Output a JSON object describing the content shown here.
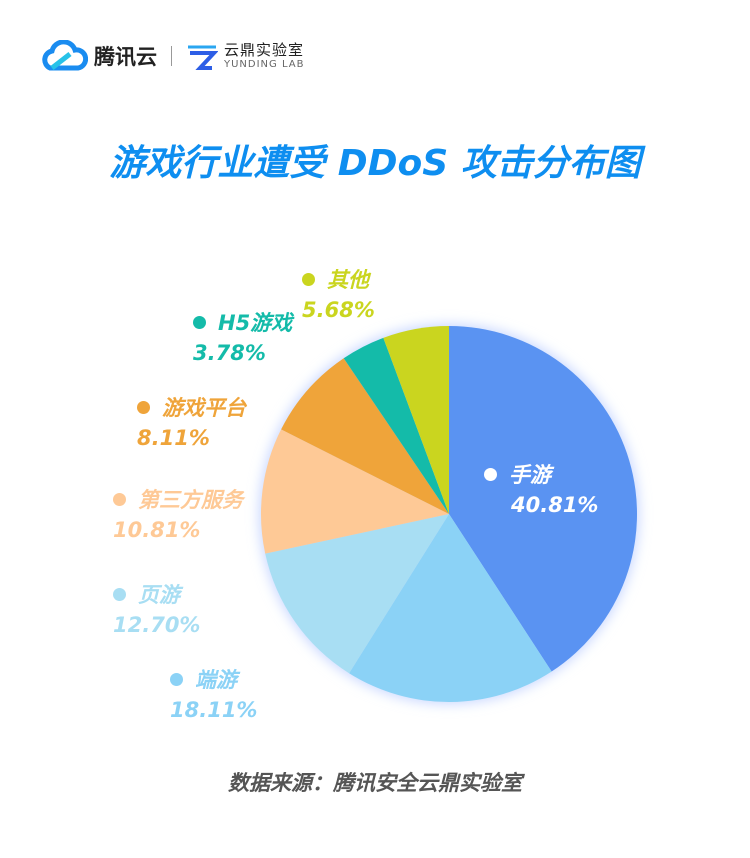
{
  "header": {
    "brand": "腾讯云",
    "lab_cn": "云鼎实验室",
    "lab_en": "YUNDING LAB"
  },
  "chart_data": {
    "type": "pie",
    "title": "游戏行业遭受 DDoS 攻击分布图",
    "slices": [
      {
        "label": "手游",
        "value": 40.81,
        "pct": "40.81%",
        "color": "#5a93f2"
      },
      {
        "label": "端游",
        "value": 18.11,
        "pct": "18.11%",
        "color": "#8bd2f6"
      },
      {
        "label": "页游",
        "value": 12.7,
        "pct": "12.70%",
        "color": "#a8def3"
      },
      {
        "label": "第三方服务",
        "value": 10.81,
        "pct": "10.81%",
        "color": "#fec996"
      },
      {
        "label": "游戏平台",
        "value": 8.11,
        "pct": "8.11%",
        "color": "#efa43a"
      },
      {
        "label": "H5游戏",
        "value": 3.78,
        "pct": "3.78%",
        "color": "#14bba9"
      },
      {
        "label": "其他",
        "value": 5.68,
        "pct": "5.68%",
        "color": "#cad51f"
      }
    ],
    "start": "top",
    "direction": "clockwise"
  },
  "footer": {
    "source": "数据来源：腾讯安全云鼎实验室"
  }
}
